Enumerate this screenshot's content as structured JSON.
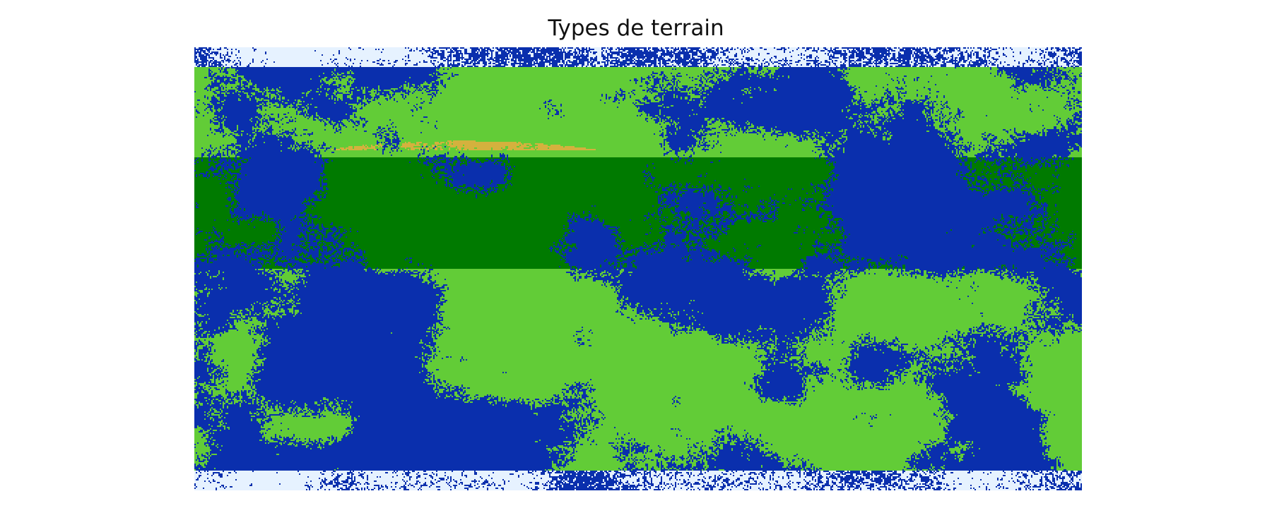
{
  "chart_data": {
    "type": "heatmap",
    "title": "Types de terrain",
    "xlabel": "",
    "ylabel": "",
    "axes_visible": false,
    "grid": false,
    "legend": "none",
    "categories": [
      "ice",
      "water",
      "grassland",
      "forest",
      "desert"
    ],
    "colors": {
      "ice": "#e6f2ff",
      "water": "#0a2fad",
      "grassland": "#62cc37",
      "forest": "#007a00",
      "desert": "#d4b13e"
    },
    "bands": [
      {
        "terrain": "ice",
        "lat_from": 90,
        "lat_to": 82
      },
      {
        "terrain": "grassland",
        "lat_from": 82,
        "lat_to": 45
      },
      {
        "terrain": "forest",
        "lat_from": 45,
        "lat_to": 0
      },
      {
        "terrain": "grassland",
        "lat_from": 0,
        "lat_to": -82
      },
      {
        "terrain": "ice",
        "lat_from": -82,
        "lat_to": -90
      }
    ],
    "dominant_terrain": "water"
  }
}
